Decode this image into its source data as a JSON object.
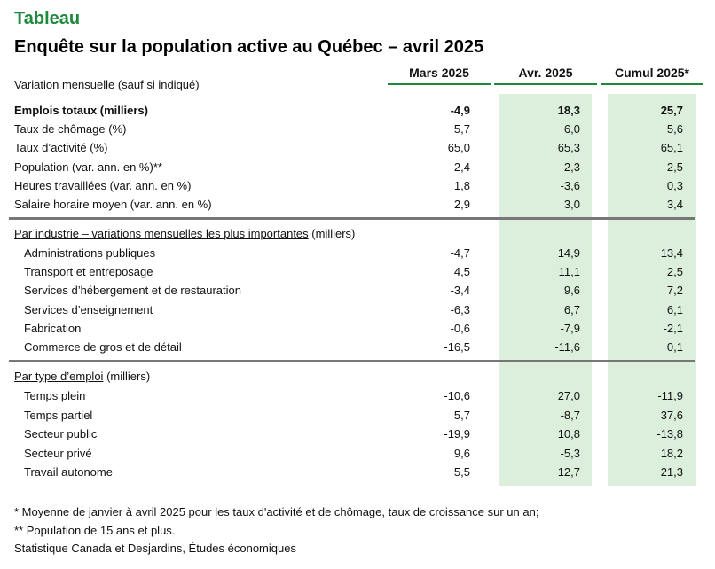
{
  "label": "Tableau",
  "title": "Enquête sur la population active au Québec – avril 2025",
  "subheading": "Variation mensuelle (sauf si indiqué)",
  "columns": [
    "Mars 2025",
    "Avr. 2025",
    "Cumul 2025*"
  ],
  "colors": {
    "accent": "#1d8a3e",
    "shade": "#dcefdd",
    "separator": "#777777"
  },
  "section1": {
    "rows": [
      {
        "label": "Emplois totaux (milliers)",
        "values": [
          "-4,9",
          "18,3",
          "25,7"
        ],
        "bold": true
      },
      {
        "label": "Taux de chômage (%)",
        "values": [
          "5,7",
          "6,0",
          "5,6"
        ]
      },
      {
        "label": "Taux d’activité (%)",
        "values": [
          "65,0",
          "65,3",
          "65,1"
        ]
      },
      {
        "label": "Population (var. ann. en %)**",
        "values": [
          "2,4",
          "2,3",
          "2,5"
        ]
      },
      {
        "label": "Heures travaillées (var. ann. en %)",
        "values": [
          "1,8",
          "-3,6",
          "0,3"
        ]
      },
      {
        "label": "Salaire horaire moyen (var. ann. en %)",
        "values": [
          "2,9",
          "3,0",
          "3,4"
        ]
      }
    ]
  },
  "section2": {
    "heading_underlined": "Par industrie – variations mensuelles les plus importantes",
    "heading_rest": " (milliers)",
    "rows": [
      {
        "label": "Administrations publiques",
        "values": [
          "-4,7",
          "14,9",
          "13,4"
        ]
      },
      {
        "label": "Transport et entreposage",
        "values": [
          "4,5",
          "11,1",
          "2,5"
        ]
      },
      {
        "label": "Services d’hébergement et de restauration",
        "values": [
          "-3,4",
          "9,6",
          "7,2"
        ]
      },
      {
        "label": "Services d’enseignement",
        "values": [
          "-6,3",
          "6,7",
          "6,1"
        ]
      },
      {
        "label": "Fabrication",
        "values": [
          "-0,6",
          "-7,9",
          "-2,1"
        ]
      },
      {
        "label": "Commerce de gros et de détail",
        "values": [
          "-16,5",
          "-11,6",
          "0,1"
        ]
      }
    ]
  },
  "section3": {
    "heading_underlined": "Par type d’emploi",
    "heading_rest": " (milliers)",
    "rows": [
      {
        "label": "Temps plein",
        "values": [
          "-10,6",
          "27,0",
          "-11,9"
        ]
      },
      {
        "label": "Temps partiel",
        "values": [
          "5,7",
          "-8,7",
          "37,6"
        ]
      },
      {
        "label": "Secteur public",
        "values": [
          "-19,9",
          "10,8",
          "-13,8"
        ]
      },
      {
        "label": "Secteur privé",
        "values": [
          "9,6",
          "-5,3",
          "18,2"
        ]
      },
      {
        "label": "Travail autonome",
        "values": [
          "5,5",
          "12,7",
          "21,3"
        ]
      }
    ]
  },
  "footnotes": [
    "* Moyenne de janvier à avril 2025 pour les taux d'activité et de chômage, taux de croissance sur un an;",
    "** Population de 15 ans et plus.",
    "Statistique Canada et Desjardins, Études économiques"
  ]
}
